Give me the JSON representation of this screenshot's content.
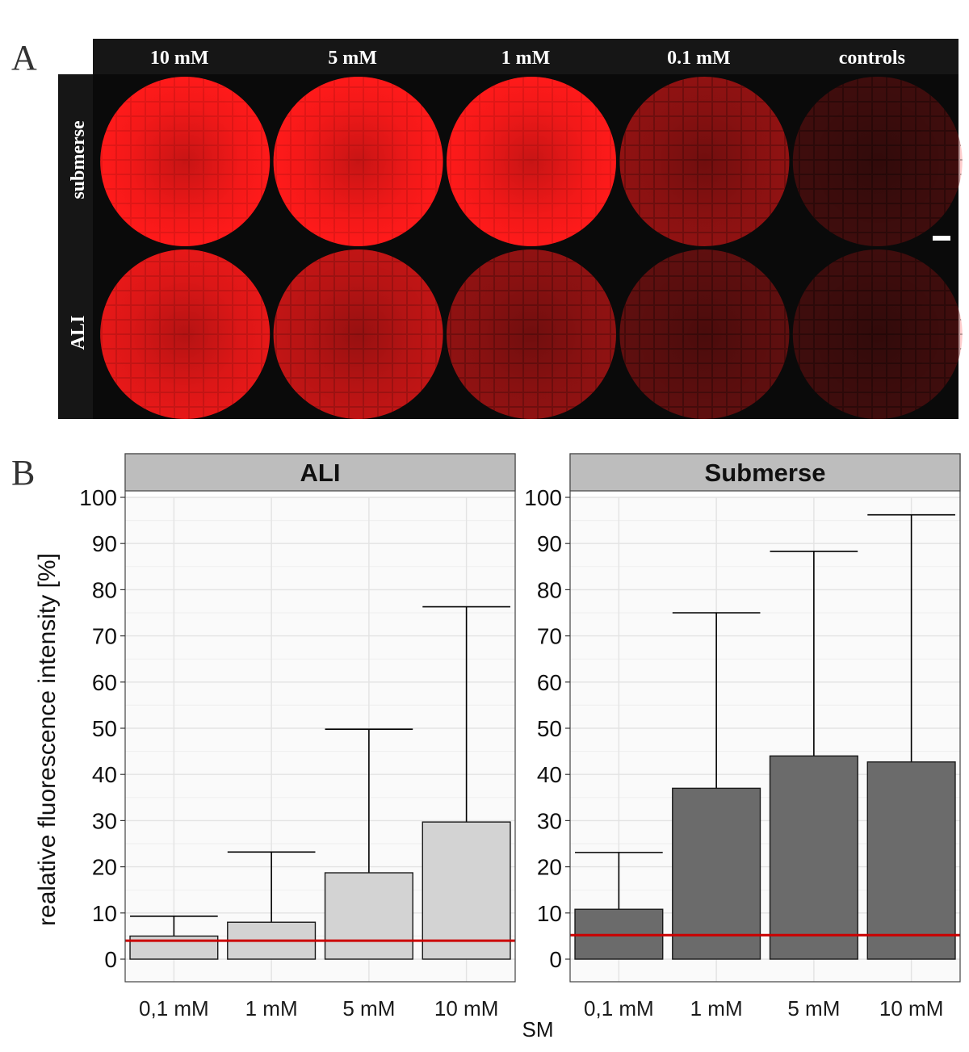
{
  "panel_letters": {
    "a": "A",
    "b": "B"
  },
  "panel_a": {
    "columns": [
      "10 mM",
      "5 mM",
      "1 mM",
      "0.1 mM",
      "controls"
    ],
    "rows": [
      "submerse",
      "ALI"
    ],
    "intensity": [
      [
        1.0,
        1.0,
        1.0,
        0.55,
        0.22
      ],
      [
        0.9,
        0.75,
        0.55,
        0.35,
        0.22
      ]
    ],
    "colors": {
      "fluor": "#ff1a1a",
      "bg": "#0a0a0a",
      "header": "#161616"
    }
  },
  "chart_data": [
    {
      "type": "bar",
      "title": "ALI",
      "categories": [
        "0,1 mM",
        "1 mM",
        "5 mM",
        "10 mM"
      ],
      "values": [
        5,
        8,
        18.7,
        29.7
      ],
      "error_upper": [
        9.3,
        23.2,
        49.8,
        76.3
      ],
      "reference_line": 4,
      "ylim": [
        0,
        100
      ],
      "yticks": [
        0,
        10,
        20,
        30,
        40,
        50,
        60,
        70,
        80,
        90,
        100
      ],
      "ylabel": "realative fluorescence intensity [%]",
      "xlabel": "SM",
      "bar_color": "#d3d3d3"
    },
    {
      "type": "bar",
      "title": "Submerse",
      "categories": [
        "0,1 mM",
        "1 mM",
        "5 mM",
        "10 mM"
      ],
      "values": [
        10.8,
        37,
        44,
        42.7
      ],
      "error_upper": [
        23.1,
        75,
        88.3,
        96.2
      ],
      "reference_line": 5.2,
      "ylim": [
        0,
        100
      ],
      "yticks": [
        0,
        10,
        20,
        30,
        40,
        50,
        60,
        70,
        80,
        90,
        100
      ],
      "bar_color": "#6b6b6b"
    }
  ],
  "colors": {
    "reference_line": "#cc0000",
    "strip": "#bdbdbd",
    "grid": "#e3e3e3",
    "panel_bg": "#fafafa"
  }
}
